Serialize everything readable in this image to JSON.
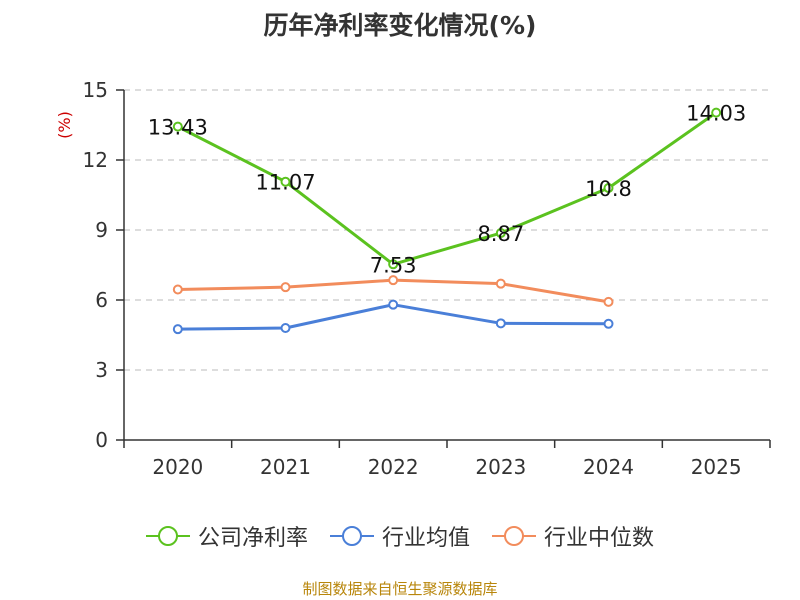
{
  "colors": {
    "grid": "#bbbbbb",
    "axis": "#333333",
    "ylabel": "#cc0000",
    "source": "#b8860b"
  },
  "chart_data": {
    "type": "line",
    "title": "历年净利率变化情况(%)",
    "ylabel": "(%)",
    "xlabel": "",
    "ylim": [
      0,
      15
    ],
    "yticks": [
      0,
      3,
      6,
      9,
      12,
      15
    ],
    "grid": true,
    "legend_position": "bottom",
    "categories": [
      "2020",
      "2021",
      "2022",
      "2023",
      "2024",
      "2025"
    ],
    "series": [
      {
        "name": "公司净利率",
        "color": "#5bc21f",
        "values": [
          13.43,
          11.07,
          7.53,
          8.87,
          10.8,
          14.03
        ],
        "labels": [
          "13.43",
          "11.07",
          "7.53",
          "8.87",
          "10.8",
          "14.03"
        ]
      },
      {
        "name": "行业均值",
        "color": "#4a7fd8",
        "values": [
          4.75,
          4.8,
          5.8,
          5.0,
          4.98,
          null
        ]
      },
      {
        "name": "行业中位数",
        "color": "#f28c5c",
        "values": [
          6.45,
          6.55,
          6.85,
          6.7,
          5.92,
          null
        ]
      }
    ]
  },
  "source": "制图数据来自恒生聚源数据库"
}
